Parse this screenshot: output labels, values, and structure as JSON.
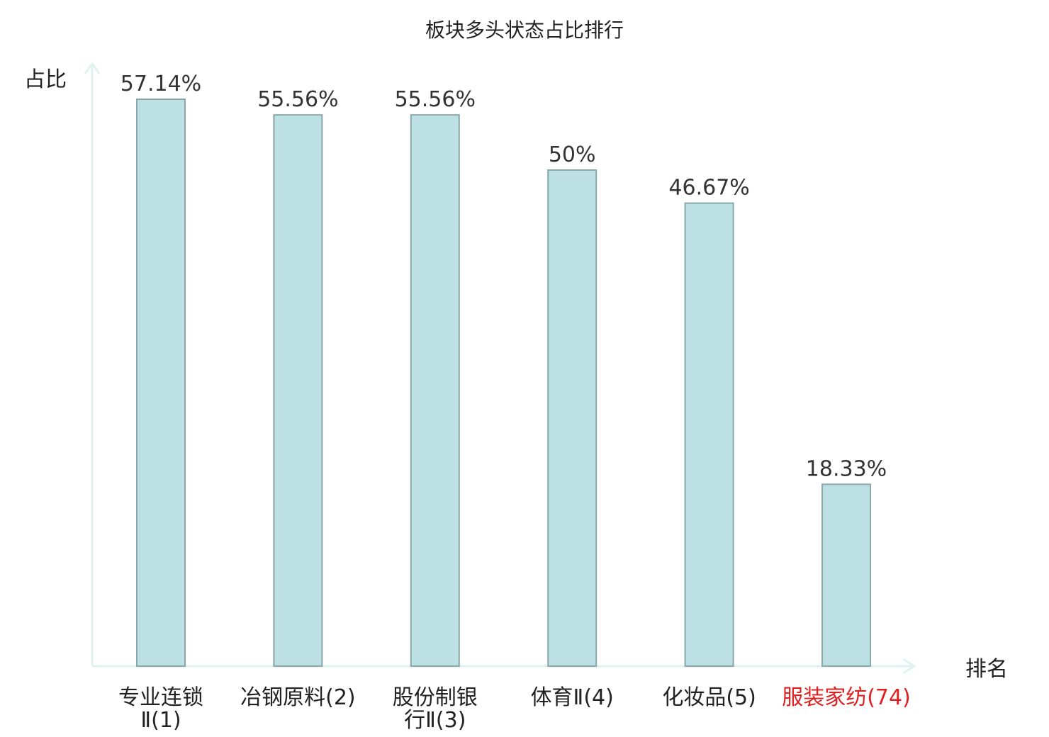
{
  "chart_data": {
    "type": "bar",
    "title": "板块多头状态占比排行",
    "ylabel": "占比",
    "xlabel": "排名",
    "ylim": [
      0,
      60
    ],
    "grid": false,
    "legend": "none",
    "categories": [
      {
        "name": "专业连锁Ⅱ",
        "rank": "(1)",
        "lines": [
          "专业连锁",
          "Ⅱ(1)"
        ]
      },
      {
        "name": "冶钢原料",
        "rank": "(2)",
        "lines": [
          "冶钢原料(2)"
        ]
      },
      {
        "name": "股份制银行Ⅱ",
        "rank": "(3)",
        "lines": [
          "股份制银",
          "行Ⅱ(3)"
        ]
      },
      {
        "name": "体育Ⅱ",
        "rank": "(4)",
        "lines": [
          "体育Ⅱ(4)"
        ]
      },
      {
        "name": "化妆品",
        "rank": "(5)",
        "lines": [
          "化妆品(5)"
        ]
      },
      {
        "name": "服装家纺",
        "rank": "(74)",
        "lines": [
          "服装家纺(74)"
        ],
        "highlight": true
      }
    ],
    "values": [
      57.14,
      55.56,
      55.56,
      50,
      46.67,
      18.33
    ],
    "value_labels": [
      "57.14%",
      "55.56%",
      "55.56%",
      "50%",
      "46.67%",
      "18.33%"
    ]
  },
  "colors": {
    "bar_fill": "#bce0e3",
    "bar_stroke": "#8aa8aa",
    "axis": "#dff2ef",
    "highlight": "#e02020"
  }
}
